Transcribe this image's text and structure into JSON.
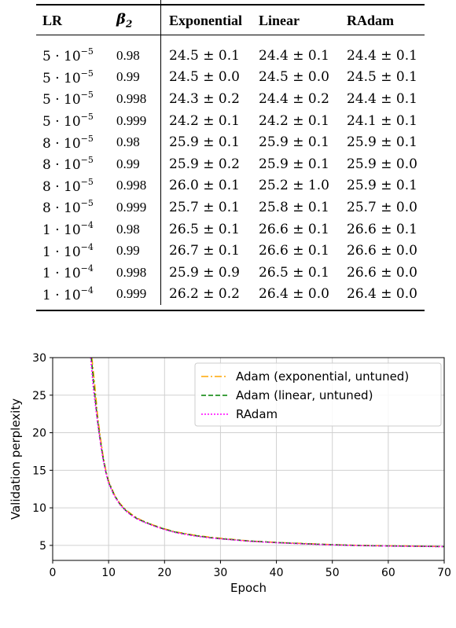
{
  "table": {
    "headers": [
      "LR",
      "β2",
      "Exponential",
      "Linear",
      "RAdam"
    ],
    "rows": [
      {
        "lr_mant": "5",
        "lr_exp": "−5",
        "beta2": "0.98",
        "exponential": "24.5 ± 0.1",
        "linear": "24.4 ± 0.1",
        "radam": "24.4 ± 0.1"
      },
      {
        "lr_mant": "5",
        "lr_exp": "−5",
        "beta2": "0.99",
        "exponential": "24.5 ± 0.0",
        "linear": "24.5 ± 0.0",
        "radam": "24.5 ± 0.1"
      },
      {
        "lr_mant": "5",
        "lr_exp": "−5",
        "beta2": "0.998",
        "exponential": "24.3 ± 0.2",
        "linear": "24.4 ± 0.2",
        "radam": "24.4 ± 0.1"
      },
      {
        "lr_mant": "5",
        "lr_exp": "−5",
        "beta2": "0.999",
        "exponential": "24.2 ± 0.1",
        "linear": "24.2 ± 0.1",
        "radam": "24.1 ± 0.1"
      },
      {
        "lr_mant": "8",
        "lr_exp": "−5",
        "beta2": "0.98",
        "exponential": "25.9 ± 0.1",
        "linear": "25.9 ± 0.1",
        "radam": "25.9 ± 0.1"
      },
      {
        "lr_mant": "8",
        "lr_exp": "−5",
        "beta2": "0.99",
        "exponential": "25.9 ± 0.2",
        "linear": "25.9 ± 0.1",
        "radam": "25.9 ± 0.0"
      },
      {
        "lr_mant": "8",
        "lr_exp": "−5",
        "beta2": "0.998",
        "exponential": "26.0 ± 0.1",
        "linear": "25.2 ± 1.0",
        "radam": "25.9 ± 0.1"
      },
      {
        "lr_mant": "8",
        "lr_exp": "−5",
        "beta2": "0.999",
        "exponential": "25.7 ± 0.1",
        "linear": "25.8 ± 0.1",
        "radam": "25.7 ± 0.0"
      },
      {
        "lr_mant": "1",
        "lr_exp": "−4",
        "beta2": "0.98",
        "exponential": "26.5 ± 0.1",
        "linear": "26.6 ± 0.1",
        "radam": "26.6 ± 0.1"
      },
      {
        "lr_mant": "1",
        "lr_exp": "−4",
        "beta2": "0.99",
        "exponential": "26.7 ± 0.1",
        "linear": "26.6 ± 0.1",
        "radam": "26.6 ± 0.0"
      },
      {
        "lr_mant": "1",
        "lr_exp": "−4",
        "beta2": "0.998",
        "exponential": "25.9 ± 0.9",
        "linear": "26.5 ± 0.1",
        "radam": "26.6 ± 0.0"
      },
      {
        "lr_mant": "1",
        "lr_exp": "−4",
        "beta2": "0.999",
        "exponential": "26.2 ± 0.2",
        "linear": "26.4 ± 0.0",
        "radam": "26.4 ± 0.0"
      }
    ]
  },
  "chart_data": {
    "type": "line",
    "title": "",
    "xlabel": "Epoch",
    "ylabel": "Validation perplexity",
    "xlim": [
      0,
      70
    ],
    "ylim": [
      3,
      30
    ],
    "xticks": [
      0,
      10,
      20,
      30,
      40,
      50,
      60,
      70
    ],
    "yticks": [
      5,
      10,
      15,
      20,
      25,
      30
    ],
    "grid": true,
    "legend_position": "top-right",
    "series": [
      {
        "name": "Adam (exponential, untuned)",
        "color": "#ffa500",
        "style": "dashdot",
        "x": [
          7.0,
          7.5,
          8,
          8.5,
          9,
          9.5,
          10,
          11,
          12,
          13,
          14,
          15,
          16,
          18,
          20,
          22,
          25,
          28,
          30,
          35,
          40,
          45,
          50,
          55,
          60,
          65,
          70
        ],
        "y": [
          30,
          26.5,
          22.5,
          19.5,
          17.0,
          15.0,
          13.6,
          11.8,
          10.6,
          9.8,
          9.2,
          8.7,
          8.3,
          7.7,
          7.2,
          6.8,
          6.4,
          6.1,
          5.95,
          5.6,
          5.4,
          5.25,
          5.1,
          5.0,
          4.95,
          4.9,
          4.85
        ]
      },
      {
        "name": "Adam (linear, untuned)",
        "color": "#008000",
        "style": "dashed",
        "x": [
          6.9,
          7.4,
          8,
          8.5,
          9,
          9.5,
          10,
          11,
          12,
          13,
          14,
          15,
          16,
          18,
          20,
          22,
          25,
          28,
          30,
          35,
          40,
          45,
          50,
          55,
          60,
          65,
          70
        ],
        "y": [
          30,
          26.0,
          21.8,
          19.0,
          16.7,
          14.8,
          13.4,
          11.7,
          10.5,
          9.7,
          9.1,
          8.6,
          8.25,
          7.65,
          7.15,
          6.75,
          6.35,
          6.05,
          5.9,
          5.58,
          5.38,
          5.22,
          5.08,
          4.98,
          4.93,
          4.88,
          4.84
        ]
      },
      {
        "name": "RAdam",
        "color": "#ff00ff",
        "style": "dotted",
        "x": [
          6.8,
          7.3,
          8,
          8.5,
          9,
          9.5,
          10,
          11,
          12,
          13,
          14,
          15,
          16,
          18,
          20,
          22,
          25,
          28,
          30,
          35,
          40,
          45,
          50,
          55,
          60,
          65,
          70
        ],
        "y": [
          30,
          25.8,
          21.5,
          18.8,
          16.5,
          14.7,
          13.3,
          11.6,
          10.45,
          9.65,
          9.05,
          8.55,
          8.2,
          7.6,
          7.1,
          6.7,
          6.3,
          6.0,
          5.88,
          5.55,
          5.35,
          5.2,
          5.06,
          4.97,
          4.92,
          4.87,
          4.83
        ]
      }
    ]
  }
}
